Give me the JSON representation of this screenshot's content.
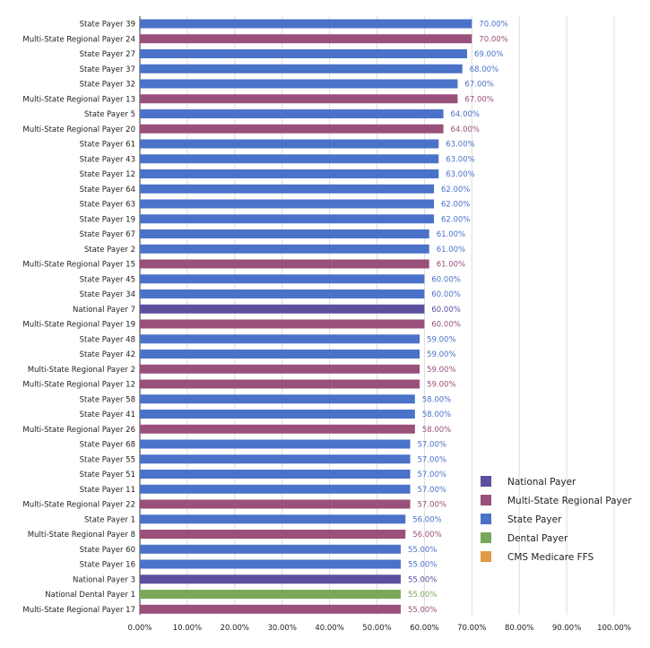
{
  "chart_data": {
    "type": "bar",
    "orientation": "horizontal",
    "title": "",
    "xlabel": "",
    "ylabel": "",
    "xlim": [
      0,
      100
    ],
    "x_tick_labels": [
      "0.00%",
      "10.00%",
      "20.00%",
      "30.00%",
      "40.00%",
      "50.00%",
      "60.00%",
      "70.00%",
      "80.00%",
      "90.00%",
      "100.00%"
    ],
    "grid": "vertical",
    "legend_position": "right",
    "legend": [
      {
        "name": "National Payer",
        "color": "#5b4f9e"
      },
      {
        "name": "Multi-State Regional Payer",
        "color": "#99507a"
      },
      {
        "name": "State Payer",
        "color": "#4a72c8"
      },
      {
        "name": "Dental Payer",
        "color": "#79a85a"
      },
      {
        "name": "CMS Medicare FFS",
        "color": "#e09a4a"
      }
    ],
    "bars": [
      {
        "label": "State Payer 39",
        "value": 70,
        "text": "70.00%",
        "group": "State Payer"
      },
      {
        "label": "Multi-State Regional Payer 24",
        "value": 70,
        "text": "70.00%",
        "group": "Multi-State Regional Payer"
      },
      {
        "label": "State Payer 27",
        "value": 69,
        "text": "69.00%",
        "group": "State Payer"
      },
      {
        "label": "State Payer 37",
        "value": 68,
        "text": "68.00%",
        "group": "State Payer"
      },
      {
        "label": "State Payer 32",
        "value": 67,
        "text": "67.00%",
        "group": "State Payer"
      },
      {
        "label": "Multi-State Regional Payer 13",
        "value": 67,
        "text": "67.00%",
        "group": "Multi-State Regional Payer"
      },
      {
        "label": "State Payer 5",
        "value": 64,
        "text": "64.00%",
        "group": "State Payer"
      },
      {
        "label": "Multi-State Regional Payer 20",
        "value": 64,
        "text": "64.00%",
        "group": "Multi-State Regional Payer"
      },
      {
        "label": "State Payer 61",
        "value": 63,
        "text": "63.00%",
        "group": "State Payer"
      },
      {
        "label": "State Payer 43",
        "value": 63,
        "text": "63.00%",
        "group": "State Payer"
      },
      {
        "label": "State Payer 12",
        "value": 63,
        "text": "63.00%",
        "group": "State Payer"
      },
      {
        "label": "State Payer 64",
        "value": 62,
        "text": "62.00%",
        "group": "State Payer"
      },
      {
        "label": "State Payer 63",
        "value": 62,
        "text": "62.00%",
        "group": "State Payer"
      },
      {
        "label": "State Payer 19",
        "value": 62,
        "text": "62.00%",
        "group": "State Payer"
      },
      {
        "label": "State Payer 67",
        "value": 61,
        "text": "61.00%",
        "group": "State Payer"
      },
      {
        "label": "State Payer 2",
        "value": 61,
        "text": "61.00%",
        "group": "State Payer"
      },
      {
        "label": "Multi-State Regional Payer 15",
        "value": 61,
        "text": "61.00%",
        "group": "Multi-State Regional Payer"
      },
      {
        "label": "State Payer 45",
        "value": 60,
        "text": "60.00%",
        "group": "State Payer"
      },
      {
        "label": "State Payer 34",
        "value": 60,
        "text": "60.00%",
        "group": "State Payer"
      },
      {
        "label": "National Payer 7",
        "value": 60,
        "text": "60.00%",
        "group": "National Payer"
      },
      {
        "label": "Multi-State Regional Payer 19",
        "value": 60,
        "text": "60.00%",
        "group": "Multi-State Regional Payer"
      },
      {
        "label": "State Payer 48",
        "value": 59,
        "text": "59.00%",
        "group": "State Payer"
      },
      {
        "label": "State Payer 42",
        "value": 59,
        "text": "59.00%",
        "group": "State Payer"
      },
      {
        "label": "Multi-State Regional Payer 2",
        "value": 59,
        "text": "59.00%",
        "group": "Multi-State Regional Payer"
      },
      {
        "label": "Multi-State Regional Payer 12",
        "value": 59,
        "text": "59.00%",
        "group": "Multi-State Regional Payer"
      },
      {
        "label": "State Payer 58",
        "value": 58,
        "text": "58.00%",
        "group": "State Payer"
      },
      {
        "label": "State Payer 41",
        "value": 58,
        "text": "58.00%",
        "group": "State Payer"
      },
      {
        "label": "Multi-State Regional Payer 26",
        "value": 58,
        "text": "58.00%",
        "group": "Multi-State Regional Payer"
      },
      {
        "label": "State Payer 68",
        "value": 57,
        "text": "57.00%",
        "group": "State Payer"
      },
      {
        "label": "State Payer 55",
        "value": 57,
        "text": "57.00%",
        "group": "State Payer"
      },
      {
        "label": "State Payer 51",
        "value": 57,
        "text": "57.00%",
        "group": "State Payer"
      },
      {
        "label": "State Payer 11",
        "value": 57,
        "text": "57.00%",
        "group": "State Payer"
      },
      {
        "label": "Multi-State Regional Payer 22",
        "value": 57,
        "text": "57.00%",
        "group": "Multi-State Regional Payer"
      },
      {
        "label": "State Payer 1",
        "value": 56,
        "text": "56.00%",
        "group": "State Payer"
      },
      {
        "label": "Multi-State Regional Payer 8",
        "value": 56,
        "text": "56.00%",
        "group": "Multi-State Regional Payer"
      },
      {
        "label": "State Payer 60",
        "value": 55,
        "text": "55.00%",
        "group": "State Payer"
      },
      {
        "label": "State Payer 16",
        "value": 55,
        "text": "55.00%",
        "group": "State Payer"
      },
      {
        "label": "National Payer 3",
        "value": 55,
        "text": "55.00%",
        "group": "National Payer"
      },
      {
        "label": "National Dental Payer 1",
        "value": 55,
        "text": "55.00%",
        "group": "Dental Payer"
      },
      {
        "label": "Multi-State Regional Payer 17",
        "value": 55,
        "text": "55.00%",
        "group": "Multi-State Regional Payer"
      }
    ]
  }
}
